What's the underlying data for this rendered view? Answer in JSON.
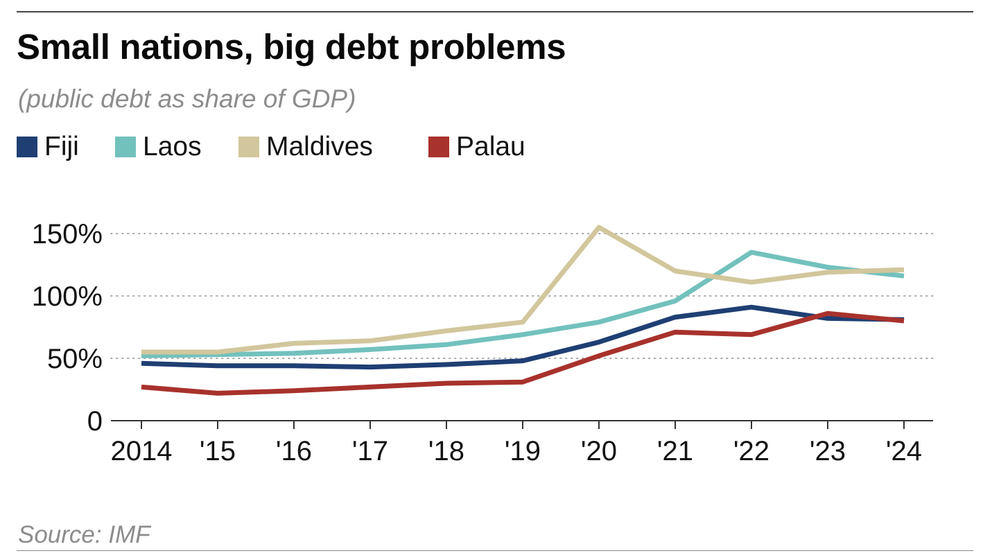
{
  "chart_data": {
    "type": "line",
    "title": "Small nations, big debt problems",
    "subtitle": "(public debt as share of GDP)",
    "source": "Source: IMF",
    "categories": [
      "2014",
      "'15",
      "'16",
      "'17",
      "'18",
      "'19",
      "'20",
      "'21",
      "'22",
      "'23",
      "'24"
    ],
    "ylim": [
      0,
      150
    ],
    "yticks": [
      {
        "value": 0,
        "label": "0"
      },
      {
        "value": 50,
        "label": "50%"
      },
      {
        "value": 100,
        "label": "100%"
      },
      {
        "value": 150,
        "label": "150%"
      }
    ],
    "grid": true,
    "legend_position": "top-left",
    "series": [
      {
        "name": "Fiji",
        "color": "#1f3f73",
        "values": [
          46,
          44,
          44,
          43,
          45,
          48,
          63,
          83,
          91,
          82,
          81
        ]
      },
      {
        "name": "Laos",
        "color": "#72c1bd",
        "values": [
          52,
          53,
          54,
          57,
          61,
          69,
          79,
          96,
          135,
          123,
          116
        ]
      },
      {
        "name": "Maldives",
        "color": "#d2c69c",
        "values": [
          55,
          55,
          62,
          64,
          72,
          79,
          155,
          120,
          111,
          119,
          121
        ]
      },
      {
        "name": "Palau",
        "color": "#a8322c",
        "values": [
          27,
          22,
          24,
          27,
          30,
          31,
          52,
          71,
          69,
          86,
          80
        ]
      }
    ]
  }
}
